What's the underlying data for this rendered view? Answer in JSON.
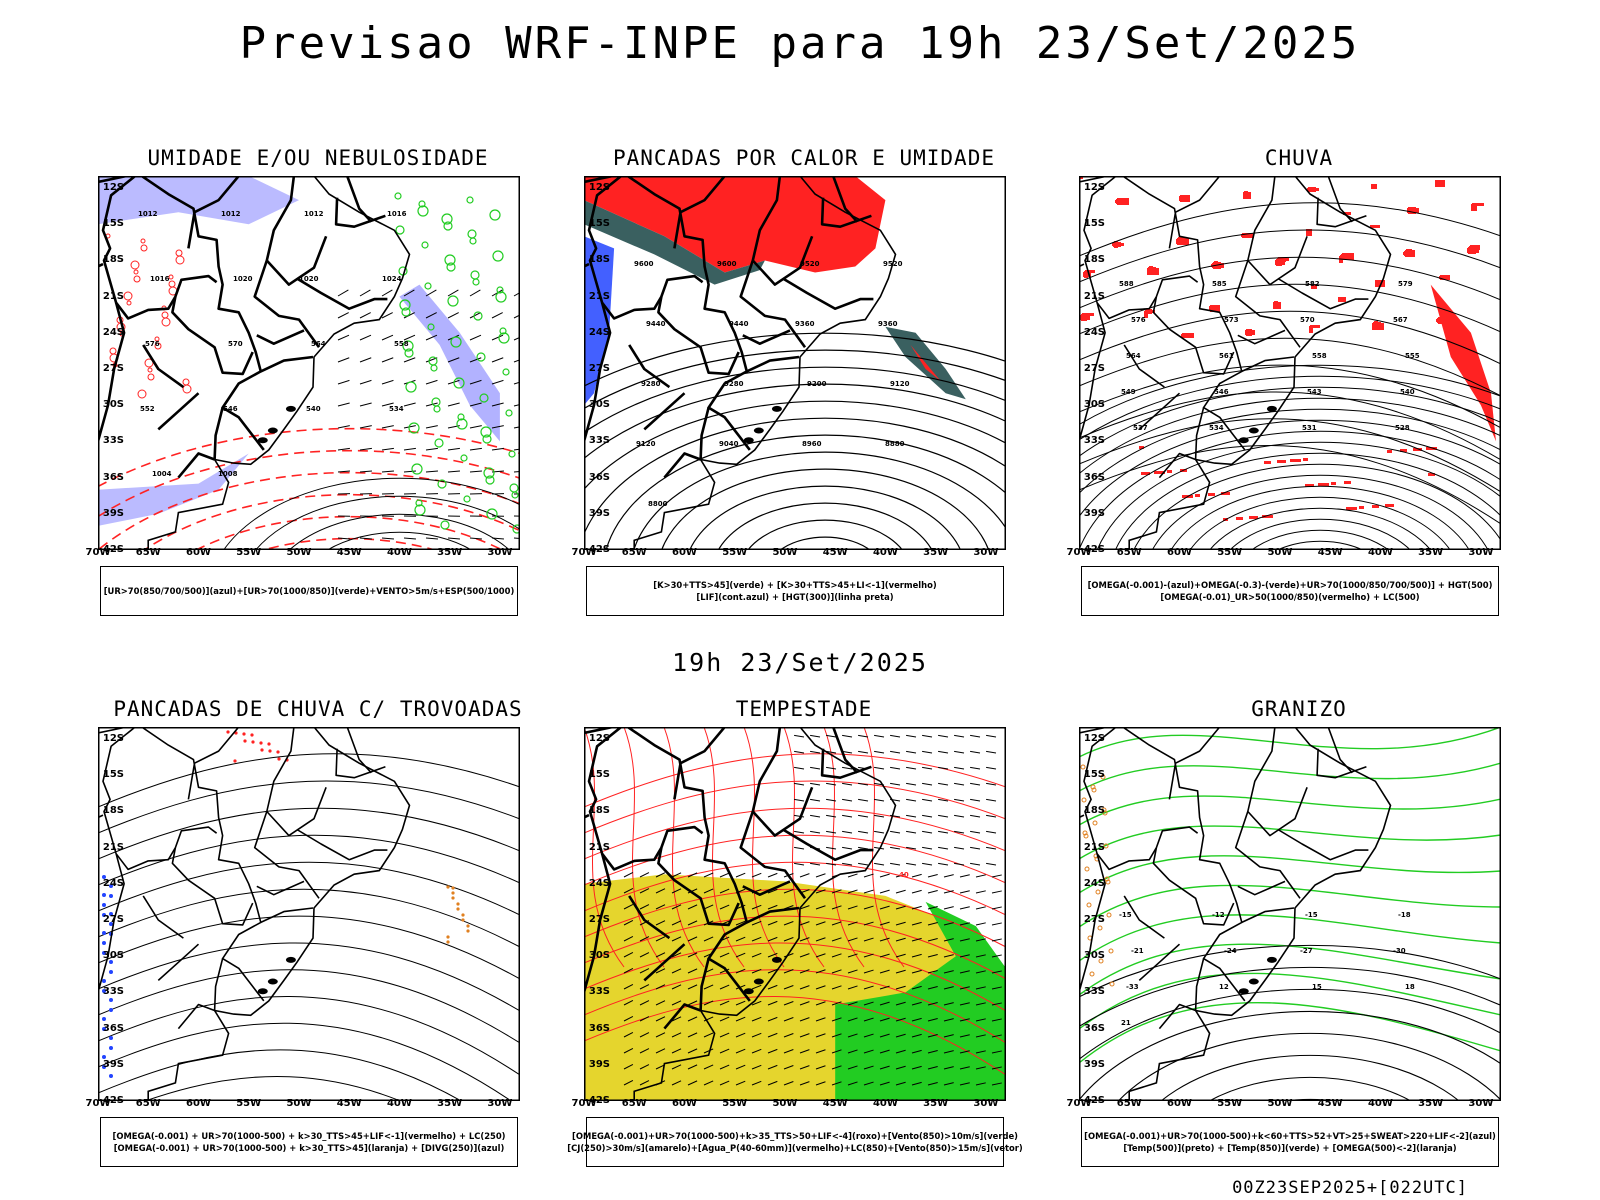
{
  "header": {
    "title": "Previsao WRF-INPE  para 19h 23/Set/2025"
  },
  "mid_label": "19h 23/Set/2025",
  "footer": "00Z23SEP2025+[022UTC]",
  "axes": {
    "lat_ticks": [
      "12S",
      "15S",
      "18S",
      "21S",
      "24S",
      "27S",
      "30S",
      "33S",
      "36S",
      "39S",
      "42S"
    ],
    "lon_ticks": [
      "70W",
      "65W",
      "60W",
      "55W",
      "50W",
      "45W",
      "40W",
      "35W",
      "30W"
    ]
  },
  "colors": {
    "light_blue": "#aaaaff",
    "red": "#ff2222",
    "green": "#22cc22",
    "blue": "#2244ff",
    "yellow": "#e5d52d",
    "dark_teal": "#3a6060",
    "orange": "#e08020"
  },
  "panels": [
    {
      "title": "UMIDADE E/OU NEBULOSIDADE",
      "legend": [
        "[UR>70(850/700/500)](azul)+[UR>70(1000/850)](verde)+VENTO>5m/s+ESP(500/1000)"
      ],
      "contour_labels": [
        "1012",
        "1012",
        "1012",
        "1016",
        "1016",
        "1020",
        "1020",
        "1024",
        "576",
        "570",
        "564",
        "558",
        "552",
        "546",
        "540",
        "534",
        "1004",
        "1008"
      ]
    },
    {
      "title": "PANCADAS POR CALOR E UMIDADE",
      "legend": [
        "[K>30+TTS>45](verde) + [K>30+TTS>45+LI<-1](vermelho)",
        "[LIF](cont.azul) + [HGT(300)](linha preta)"
      ],
      "contour_labels": [
        "9600",
        "9600",
        "9520",
        "9520",
        "9440",
        "9440",
        "9360",
        "9360",
        "9280",
        "9280",
        "9200",
        "9120",
        "9120",
        "9040",
        "8960",
        "8880",
        "8800"
      ]
    },
    {
      "title": "CHUVA",
      "legend": [
        "[OMEGA(-0.001)-(azul)+OMEGA(-0.3)-(verde)+UR>70(1000/850/700/500)] + HGT(500)",
        "[OMEGA(-0.01)_UR>50(1000/850)(vermelho) + LC(500)"
      ],
      "contour_labels": [
        "588",
        "585",
        "582",
        "579",
        "576",
        "573",
        "570",
        "567",
        "564",
        "561",
        "558",
        "555",
        "549",
        "546",
        "543",
        "540",
        "537",
        "534",
        "531",
        "528"
      ]
    },
    {
      "title": "PANCADAS DE CHUVA C/ TROVOADAS",
      "legend": [
        "[OMEGA(-0.001) + UR>70(1000-500) + k>30_TTS>45+LIF<-1](vermelho) + LC(250)",
        "[OMEGA(-0.001) + UR>70(1000-500) + k>30_TTS>45](laranja) + [DIVG(250)](azul)"
      ],
      "contour_labels": []
    },
    {
      "title": "TEMPESTADE",
      "legend": [
        "[OMEGA(-0.001)+UR>70(1000-500)+k>35_TTS>50+LIF<-4](roxo)+[Vento(850)>10m/s](verde)",
        "[CJ(250)>30m/s](amarelo)+[Agua_P(40-60mm)](vermelho)+LC(850)+[Vento(850)>15m/s](vetor)"
      ],
      "contour_labels": [
        "40"
      ]
    },
    {
      "title": "GRANIZO",
      "legend": [
        "[OMEGA(-0.001)+UR>70(1000-500)+k<60+TTS>52+VT>25+SWEAT>220+LIF<-2](azul)",
        "[Temp(500)](preto) + [Temp(850)](verde) + [OMEGA(500)<-2](laranja)"
      ],
      "contour_labels": [
        "-15",
        "-12",
        "-15",
        "-18",
        "-21",
        "-24",
        "-27",
        "-30",
        "-33",
        "12",
        "15",
        "18",
        "21"
      ]
    }
  ]
}
